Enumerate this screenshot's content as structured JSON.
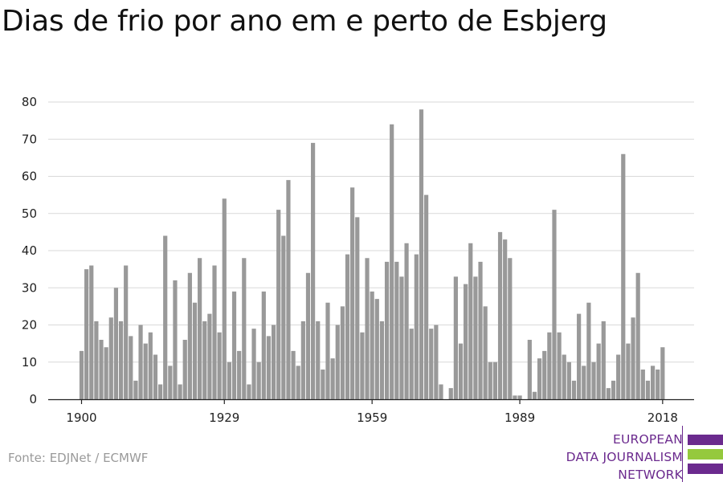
{
  "chart_data": {
    "type": "bar",
    "title": "Dias de frio por ano em e perto de Esbjerg",
    "xlabel": "",
    "ylabel": "",
    "ylim": [
      0,
      80
    ],
    "yticks": [
      0,
      10,
      20,
      30,
      40,
      50,
      60,
      70,
      80
    ],
    "xticks": [
      1900,
      1929,
      1959,
      1989,
      2018
    ],
    "x_start": 1900,
    "grid": "horizontal",
    "bar_color": "#999999",
    "values": [
      13,
      35,
      36,
      21,
      16,
      14,
      22,
      30,
      21,
      36,
      17,
      5,
      20,
      15,
      18,
      12,
      4,
      44,
      9,
      32,
      4,
      16,
      34,
      26,
      38,
      21,
      23,
      36,
      18,
      54,
      10,
      29,
      13,
      38,
      4,
      19,
      10,
      29,
      17,
      20,
      51,
      44,
      59,
      13,
      9,
      21,
      34,
      69,
      21,
      8,
      26,
      11,
      20,
      25,
      39,
      57,
      49,
      18,
      38,
      29,
      27,
      21,
      37,
      74,
      37,
      33,
      42,
      19,
      39,
      78,
      55,
      19,
      20,
      4,
      0,
      3,
      33,
      15,
      31,
      42,
      33,
      37,
      25,
      10,
      10,
      45,
      43,
      38,
      1,
      1,
      0,
      16,
      2,
      11,
      13,
      18,
      51,
      18,
      12,
      10,
      5,
      23,
      9,
      26,
      10,
      15,
      21,
      3,
      5,
      12,
      66,
      15,
      22,
      34,
      8,
      5,
      9,
      8,
      14
    ]
  },
  "footer": {
    "source": "Fonte: EDJNet / ECMWF"
  },
  "logo": {
    "line1": "EUROPEAN",
    "line2": "DATA JOURNALISM",
    "line3": "NETWORK",
    "color_purple": "#6b2a8e",
    "color_green": "#95c93d"
  }
}
